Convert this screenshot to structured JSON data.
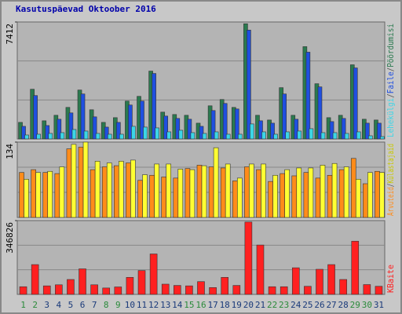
{
  "chart_data": {
    "type": "bar",
    "title": "Kasutuspäevad Oktoober 2016",
    "categories": [
      "1",
      "2",
      "3",
      "4",
      "5",
      "6",
      "7",
      "8",
      "9",
      "10",
      "11",
      "12",
      "13",
      "14",
      "15",
      "16",
      "17",
      "18",
      "19",
      "20",
      "21",
      "22",
      "23",
      "24",
      "25",
      "26",
      "27",
      "28",
      "29",
      "30",
      "31"
    ],
    "category_colors": [
      "#2a8a3a",
      "#2a8a3a",
      "#1a3a7a",
      "#1a3a7a",
      "#1a3a7a",
      "#1a3a7a",
      "#1a3a7a",
      "#2a8a3a",
      "#2a8a3a",
      "#1a3a7a",
      "#1a3a7a",
      "#1a3a7a",
      "#1a3a7a",
      "#1a3a7a",
      "#2a8a3a",
      "#2a8a3a",
      "#1a3a7a",
      "#1a3a7a",
      "#1a3a7a",
      "#1a3a7a",
      "#1a3a7a",
      "#2a8a3a",
      "#2a8a3a",
      "#1a3a7a",
      "#1a3a7a",
      "#1a3a7a",
      "#1a3a7a",
      "#1a3a7a",
      "#2a8a3a",
      "#2a8a3a",
      "#1a3a7a"
    ],
    "separator": "/",
    "panels": [
      {
        "ylim": [
          0,
          7412
        ],
        "yticks": [
          7412
        ],
        "series": [
          {
            "name": "Pöördumisi",
            "color": "#2a7a4f",
            "values": [
              1050,
              3150,
              1150,
              1500,
              2000,
              3100,
              1850,
              1050,
              1350,
              2400,
              2700,
              4300,
              1700,
              1550,
              1500,
              1000,
              2100,
              2500,
              2000,
              7300,
              1500,
              1200,
              3250,
              1500,
              5850,
              3500,
              1350,
              1500,
              4700,
              1250,
              1200
            ]
          },
          {
            "name": "Faile",
            "color": "#1f4fe0",
            "values": [
              800,
              2750,
              850,
              1250,
              1650,
              2850,
              1400,
              750,
              1050,
              2150,
              2400,
              4150,
              1450,
              1300,
              1250,
              800,
              1800,
              2250,
              1900,
              6900,
              1150,
              1000,
              2850,
              1250,
              5500,
              3300,
              1100,
              1300,
              4500,
              1000,
              1000
            ]
          },
          {
            "name": "Lehekülgi",
            "color": "#3cd6e6",
            "values": [
              250,
              300,
              350,
              400,
              600,
              500,
              350,
              300,
              300,
              800,
              750,
              700,
              450,
              550,
              400,
              350,
              450,
              300,
              300,
              950,
              450,
              300,
              450,
              500,
              650,
              400,
              400,
              350,
              450,
              200,
              150
            ]
          }
        ]
      },
      {
        "ylim": [
          0,
          134
        ],
        "yticks": [
          134
        ],
        "series": [
          {
            "name": "Arvuteid",
            "color": "#ff8c1a",
            "values": [
              80,
              85,
              80,
              78,
              122,
              125,
              85,
              90,
              92,
              97,
              66,
              75,
              72,
              70,
              87,
              93,
              90,
              88,
              65,
              90,
              85,
              64,
              78,
              74,
              80,
              70,
              75,
              85,
              105,
              60,
              82
            ]
          },
          {
            "name": "Külastajaid",
            "color": "#ffff33",
            "values": [
              68,
              80,
              82,
              90,
              130,
              134,
              100,
              97,
              100,
              102,
              76,
              95,
              95,
              86,
              85,
              92,
              124,
              95,
              70,
              95,
              95,
              75,
              85,
              88,
              88,
              93,
              96,
              90,
              68,
              80,
              80
            ]
          }
        ]
      },
      {
        "ylim": [
          0,
          346826
        ],
        "yticks": [
          346826
        ],
        "series": [
          {
            "name": "KBaite",
            "color": "#ff2020",
            "values": [
              36000,
              140000,
              40000,
              45000,
              70000,
              120000,
              45000,
              30000,
              35000,
              80000,
              112000,
              190000,
              48000,
              42000,
              40000,
              60000,
              32000,
              80000,
              42000,
              340000,
              232000,
              36000,
              36000,
              125000,
              38000,
              118000,
              140000,
              70000,
              250000,
              46000,
              38000
            ]
          }
        ]
      }
    ]
  }
}
